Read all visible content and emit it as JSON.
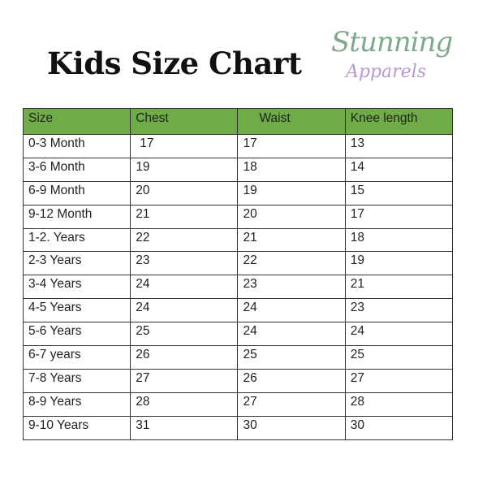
{
  "title": "Kids Size Chart",
  "logo": {
    "line1": "Stunning",
    "line2": "Apparels"
  },
  "colors": {
    "header_bg": "#6fac47",
    "logo_green": "#7fa98b",
    "logo_purple": "#b69ad0"
  },
  "table": {
    "headers": [
      "Size",
      "Chest",
      "Waist",
      "Knee  length"
    ],
    "rows": [
      [
        "0-3 Month",
        "17",
        "17",
        "13"
      ],
      [
        "3-6 Month",
        "19",
        "18",
        "14"
      ],
      [
        "6-9 Month",
        "20",
        "19",
        "15"
      ],
      [
        "9-12 Month",
        "21",
        "20",
        "17"
      ],
      [
        "1-2. Years",
        "22",
        "21",
        "18"
      ],
      [
        "2-3 Years",
        "23",
        "22",
        "19"
      ],
      [
        "3-4 Years",
        "24",
        "23",
        "21"
      ],
      [
        "4-5 Years",
        "24",
        "24",
        "23"
      ],
      [
        "5-6 Years",
        "25",
        "24",
        "24"
      ],
      [
        "6-7 years",
        "26",
        "25",
        "25"
      ],
      [
        "7-8 Years",
        "27",
        "26",
        "27"
      ],
      [
        "8-9 Years",
        "28",
        "27",
        "28"
      ],
      [
        "9-10 Years",
        "31",
        "30",
        "30"
      ]
    ]
  }
}
